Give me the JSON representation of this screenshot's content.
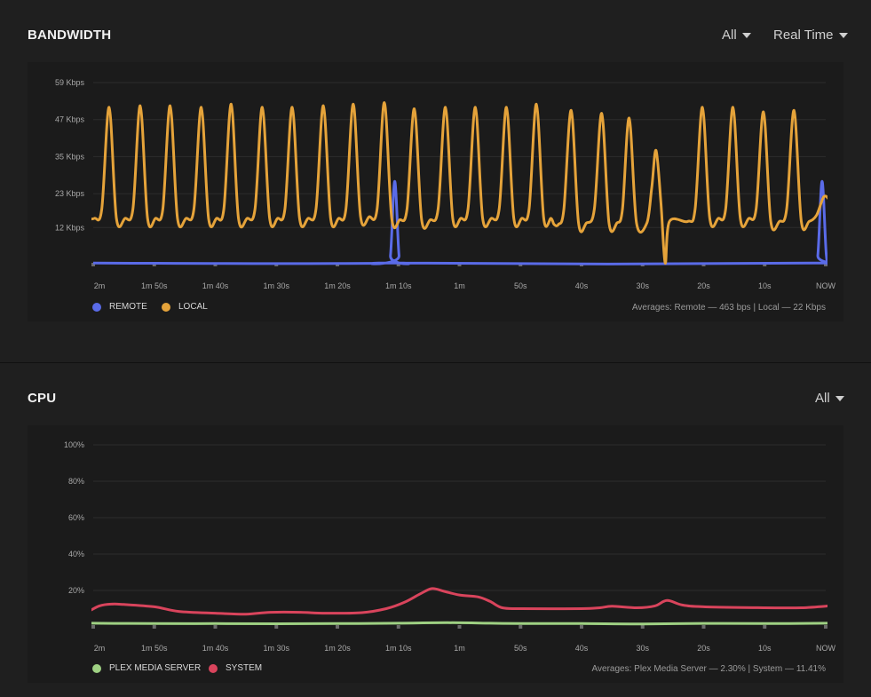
{
  "bandwidth": {
    "title": "BANDWIDTH",
    "filter_label": "All",
    "range_label": "Real Time",
    "averages": "Averages: Remote — 463 bps | Local — 22 Kbps",
    "legend": [
      {
        "label": "REMOTE",
        "color": "#5a6be8"
      },
      {
        "label": "LOCAL",
        "color": "#e5a33a"
      }
    ],
    "chart_data": {
      "type": "line",
      "x_ticks": [
        "2m",
        "1m 50s",
        "1m 40s",
        "1m 30s",
        "1m 20s",
        "1m 10s",
        "1m",
        "50s",
        "40s",
        "30s",
        "20s",
        "10s",
        "NOW"
      ],
      "y_ticks": [
        "59 Kbps",
        "47 Kbps",
        "35 Kbps",
        "23 Kbps",
        "12 Kbps"
      ],
      "y_tick_values": [
        59,
        47,
        35,
        23,
        12
      ],
      "ylim": [
        0,
        59
      ],
      "xlim": [
        120,
        0
      ],
      "unit": "Kbps",
      "series": [
        {
          "name": "REMOTE",
          "color": "#5a6be8",
          "points": [
            [
              120,
              0.5
            ],
            [
              72,
              0.5
            ],
            [
              71.3,
              3
            ],
            [
              70.6,
              27
            ],
            [
              69.9,
              3
            ],
            [
              69.3,
              0.5
            ],
            [
              2,
              0.5
            ],
            [
              1.3,
              3
            ],
            [
              0.6,
              27
            ],
            [
              -0.1,
              3
            ],
            [
              -0.7,
              0.5
            ],
            [
              -2.8,
              0.5
            ]
          ]
        },
        {
          "name": "LOCAL",
          "color": "#e5a33a",
          "points": [
            [
              121,
              15
            ],
            [
              119.8,
              15
            ],
            [
              118.6,
              18
            ],
            [
              117.4,
              51
            ],
            [
              116.2,
              15
            ],
            [
              114.8,
              15
            ],
            [
              113.5,
              18
            ],
            [
              112.3,
              51.5
            ],
            [
              111.1,
              15
            ],
            [
              109.8,
              15
            ],
            [
              108.6,
              18
            ],
            [
              107.4,
              51.5
            ],
            [
              106.2,
              15
            ],
            [
              104.8,
              15
            ],
            [
              103.5,
              18
            ],
            [
              102.3,
              51
            ],
            [
              101.1,
              15
            ],
            [
              99.8,
              15
            ],
            [
              98.6,
              18
            ],
            [
              97.4,
              52
            ],
            [
              96.2,
              15
            ],
            [
              94.8,
              15
            ],
            [
              93.5,
              18
            ],
            [
              92.3,
              51
            ],
            [
              91.1,
              15
            ],
            [
              89.8,
              15
            ],
            [
              88.6,
              18
            ],
            [
              87.4,
              51
            ],
            [
              86.2,
              15
            ],
            [
              84.8,
              15
            ],
            [
              83.5,
              18
            ],
            [
              82.3,
              51.5
            ],
            [
              81.1,
              15
            ],
            [
              79.8,
              15
            ],
            [
              78.6,
              18
            ],
            [
              77.4,
              52
            ],
            [
              76.2,
              15.5
            ],
            [
              74.8,
              15.5
            ],
            [
              73.5,
              18
            ],
            [
              72.3,
              52.5
            ],
            [
              71.1,
              15
            ],
            [
              69.8,
              14.5
            ],
            [
              68.6,
              18
            ],
            [
              67.4,
              50.5
            ],
            [
              66.2,
              14.5
            ],
            [
              64.8,
              14.5
            ],
            [
              63.5,
              18
            ],
            [
              62.3,
              51
            ],
            [
              61.1,
              15
            ],
            [
              59.8,
              15
            ],
            [
              58.6,
              18
            ],
            [
              57.4,
              51
            ],
            [
              56.2,
              15
            ],
            [
              54.8,
              15
            ],
            [
              53.5,
              18
            ],
            [
              52.3,
              51
            ],
            [
              51.1,
              15
            ],
            [
              49.8,
              15
            ],
            [
              48.6,
              18
            ],
            [
              47.4,
              52
            ],
            [
              46.2,
              15
            ],
            [
              45,
              15
            ],
            [
              44.5,
              13
            ],
            [
              43.8,
              13
            ],
            [
              42.9,
              18
            ],
            [
              41.7,
              50
            ],
            [
              40.5,
              13.5
            ],
            [
              39.2,
              13.5
            ],
            [
              37.9,
              18
            ],
            [
              36.7,
              49
            ],
            [
              35.5,
              13.5
            ],
            [
              34.2,
              13.5
            ],
            [
              33.3,
              18
            ],
            [
              32.2,
              47.5
            ],
            [
              31,
              13.5
            ],
            [
              29.3,
              13.5
            ],
            [
              28.5,
              25
            ],
            [
              27.8,
              37
            ],
            [
              27,
              20
            ],
            [
              26.3,
              0.5
            ],
            [
              25.6,
              14
            ],
            [
              22.6,
              14
            ],
            [
              21.4,
              18
            ],
            [
              20.2,
              51
            ],
            [
              19,
              15
            ],
            [
              17.6,
              15
            ],
            [
              16.4,
              18
            ],
            [
              15.2,
              51
            ],
            [
              14,
              15
            ],
            [
              12.6,
              15
            ],
            [
              11.4,
              18
            ],
            [
              10.2,
              49.5
            ],
            [
              9,
              14
            ],
            [
              7.6,
              14
            ],
            [
              6.4,
              18
            ],
            [
              5.2,
              50
            ],
            [
              4,
              14
            ],
            [
              2.7,
              14
            ],
            [
              1.5,
              16
            ],
            [
              0.3,
              22
            ],
            [
              -0.6,
              21
            ]
          ]
        }
      ]
    }
  },
  "cpu": {
    "title": "CPU",
    "filter_label": "All",
    "averages": "Averages: Plex Media Server — 2.30% | System — 11.41%",
    "legend": [
      {
        "label": "PLEX MEDIA SERVER",
        "color": "#9fd183"
      },
      {
        "label": "SYSTEM",
        "color": "#d9445c"
      }
    ],
    "chart_data": {
      "type": "line",
      "x_ticks": [
        "2m",
        "1m 50s",
        "1m 40s",
        "1m 30s",
        "1m 20s",
        "1m 10s",
        "1m",
        "50s",
        "40s",
        "30s",
        "20s",
        "10s",
        "NOW"
      ],
      "y_ticks": [
        "100%",
        "80%",
        "60%",
        "40%",
        "20%"
      ],
      "y_tick_values": [
        100,
        80,
        60,
        40,
        20
      ],
      "ylim": [
        0,
        100
      ],
      "xlim": [
        120,
        0
      ],
      "unit": "%",
      "series": [
        {
          "name": "PLEX MEDIA SERVER",
          "color": "#9fd183",
          "points": [
            [
              121,
              2
            ],
            [
              110,
              1.8
            ],
            [
              100,
              1.8
            ],
            [
              90,
              1.7
            ],
            [
              80,
              1.8
            ],
            [
              70,
              2
            ],
            [
              62,
              2.3
            ],
            [
              55,
              2
            ],
            [
              50,
              1.8
            ],
            [
              40,
              1.8
            ],
            [
              30,
              1.6
            ],
            [
              20,
              1.9
            ],
            [
              10,
              1.8
            ],
            [
              -0.5,
              2
            ]
          ]
        },
        {
          "name": "SYSTEM",
          "color": "#d9445c",
          "points": [
            [
              121,
              8
            ],
            [
              119,
              11.5
            ],
            [
              117,
              12.5
            ],
            [
              115,
              12.3
            ],
            [
              110,
              11
            ],
            [
              106,
              8.5
            ],
            [
              100,
              7.5
            ],
            [
              95,
              7
            ],
            [
              91,
              8
            ],
            [
              86,
              8
            ],
            [
              82,
              7.5
            ],
            [
              76,
              7.8
            ],
            [
              72,
              10
            ],
            [
              69,
              13.5
            ],
            [
              66.5,
              18
            ],
            [
              64.5,
              21
            ],
            [
              62.5,
              19.5
            ],
            [
              60,
              17.5
            ],
            [
              57,
              16.5
            ],
            [
              55,
              14
            ],
            [
              53,
              10.5
            ],
            [
              50,
              10
            ],
            [
              40,
              10
            ],
            [
              37,
              10.5
            ],
            [
              35,
              11.3
            ],
            [
              31,
              10.5
            ],
            [
              28,
              11.5
            ],
            [
              26,
              14.5
            ],
            [
              23.5,
              12
            ],
            [
              20,
              11
            ],
            [
              10,
              10.5
            ],
            [
              4,
              10.5
            ],
            [
              -0.5,
              11.5
            ]
          ]
        }
      ]
    }
  }
}
